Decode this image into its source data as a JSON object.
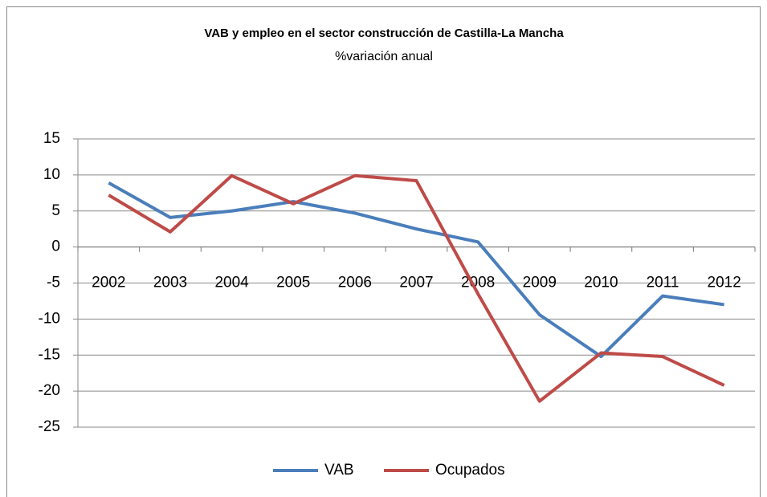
{
  "chart_data": {
    "type": "line",
    "title": "VAB y empleo en el sector construcción de Castilla-La Mancha",
    "subtitle": "%variación anual",
    "categories": [
      "2002",
      "2003",
      "2004",
      "2005",
      "2006",
      "2007",
      "2008",
      "2009",
      "2010",
      "2011",
      "2012"
    ],
    "series": [
      {
        "name": "VAB",
        "color": "#4a7ebb",
        "values": [
          8.9,
          4.1,
          5,
          6.3,
          4.7,
          2.5,
          0.7,
          -9.4,
          -15.2,
          -6.8,
          -8
        ]
      },
      {
        "name": "Ocupados",
        "color": "#be4b48",
        "values": [
          7.2,
          2.1,
          9.9,
          6,
          9.9,
          9.2,
          -6.5,
          -21.4,
          -14.7,
          -15.2,
          -19.2
        ]
      }
    ],
    "ylim": [
      -25,
      15
    ],
    "yticks": [
      -25,
      -20,
      -15,
      -10,
      -5,
      0,
      5,
      10,
      15
    ],
    "grid": true,
    "legend": "bottom"
  }
}
